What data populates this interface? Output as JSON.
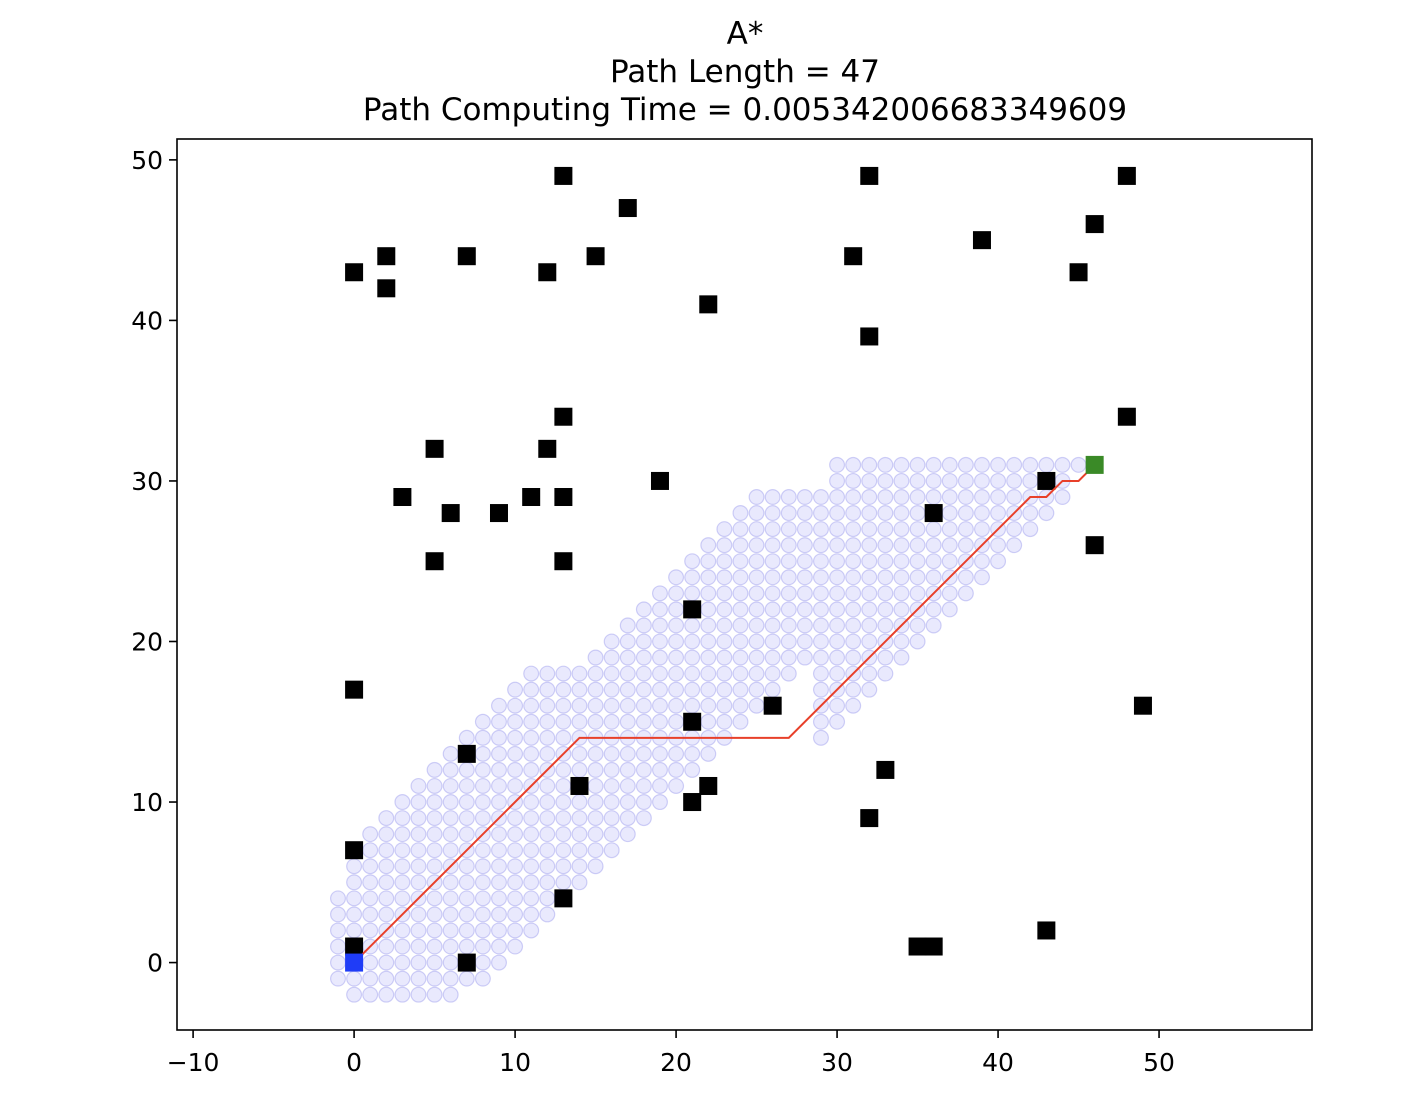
{
  "chart_data": {
    "type": "scatter",
    "title": "A*",
    "subtitle_lines": [
      "Path Length = 47",
      "Path Computing Time = 0.005342006683349609"
    ],
    "xlabel": "",
    "ylabel": "",
    "xlim": [
      -11,
      59.5
    ],
    "ylim": [
      -4.2,
      51.3
    ],
    "x_ticks": [
      -10,
      0,
      10,
      20,
      30,
      40,
      50
    ],
    "y_ticks": [
      0,
      10,
      20,
      30,
      40,
      50
    ],
    "x_tick_labels": [
      "−10",
      "0",
      "10",
      "20",
      "30",
      "40",
      "50"
    ],
    "y_tick_labels": [
      "0",
      "10",
      "20",
      "30",
      "40",
      "50"
    ],
    "grid": false,
    "start": [
      0,
      0
    ],
    "goal": [
      46,
      31
    ],
    "obstacles": [
      [
        0,
        43
      ],
      [
        2,
        44
      ],
      [
        2,
        42
      ],
      [
        7,
        44
      ],
      [
        12,
        43
      ],
      [
        13,
        49
      ],
      [
        15,
        44
      ],
      [
        17,
        47
      ],
      [
        22,
        41
      ],
      [
        31,
        44
      ],
      [
        32,
        49
      ],
      [
        32,
        39
      ],
      [
        39,
        45
      ],
      [
        45,
        43
      ],
      [
        46,
        46
      ],
      [
        48,
        49
      ],
      [
        48,
        34
      ],
      [
        5,
        32
      ],
      [
        3,
        29
      ],
      [
        6,
        28
      ],
      [
        9,
        28
      ],
      [
        11,
        29
      ],
      [
        12,
        32
      ],
      [
        13,
        34
      ],
      [
        13,
        29
      ],
      [
        5,
        25
      ],
      [
        13,
        25
      ],
      [
        19,
        30
      ],
      [
        43,
        30
      ],
      [
        36,
        28
      ],
      [
        46,
        26
      ],
      [
        21,
        22
      ],
      [
        0,
        17
      ],
      [
        21,
        15
      ],
      [
        26,
        16
      ],
      [
        49,
        16
      ],
      [
        7,
        13
      ],
      [
        14,
        11
      ],
      [
        22,
        11
      ],
      [
        21,
        10
      ],
      [
        33,
        12
      ],
      [
        32,
        9
      ],
      [
        0,
        7
      ],
      [
        13,
        4
      ],
      [
        0,
        1
      ],
      [
        7,
        0
      ],
      [
        35,
        1
      ],
      [
        36,
        1
      ],
      [
        43,
        2
      ]
    ],
    "path": [
      [
        0,
        0
      ],
      [
        14,
        14
      ],
      [
        27,
        14
      ],
      [
        42,
        29
      ],
      [
        43,
        29
      ],
      [
        44,
        30
      ],
      [
        45,
        30
      ],
      [
        46,
        31
      ]
    ],
    "explored_region": {
      "description_free": true,
      "bands": [
        [
          -2,
          9,
          0,
          1
        ],
        [
          -1,
          7,
          -1,
          2
        ],
        [
          -1,
          0,
          -1,
          7
        ],
        [
          -1,
          1,
          -1,
          14
        ],
        [
          1,
          15,
          0,
          16
        ],
        [
          14,
          28,
          0,
          31
        ],
        [
          26,
          45,
          12,
          31
        ],
        [
          28,
          45,
          22,
          31
        ],
        [
          30,
          44,
          30,
          31
        ],
        [
          31,
          36,
          0,
          31
        ]
      ]
    },
    "colors": {
      "obstacle": "#000000",
      "start": "#1f3cf7",
      "goal": "#3a8a27",
      "path": "#e8402a",
      "explored_fill": "rgba(120,120,240,0.16)",
      "explored_edge": "rgba(110,110,230,0.30)"
    }
  }
}
